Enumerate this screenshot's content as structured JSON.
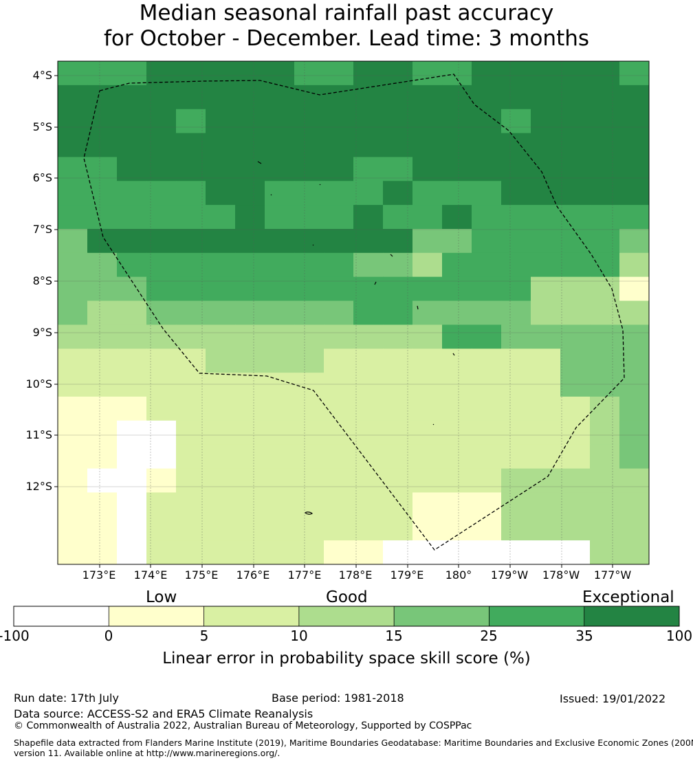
{
  "title": {
    "line1": "Median seasonal rainfall past accuracy",
    "line2": "for October - December. Lead time: 3 months"
  },
  "map": {
    "lat_labels": [
      "4°S",
      "5°S",
      "6°S",
      "7°S",
      "8°S",
      "9°S",
      "10°S",
      "11°S",
      "12°S"
    ],
    "lon_labels": [
      "173°E",
      "174°E",
      "175°E",
      "176°E",
      "177°E",
      "178°E",
      "179°E",
      "180°",
      "179°W",
      "178°W",
      "177°W"
    ],
    "grid_lon_start": 172.25,
    "grid_lat_start": -3.75,
    "cell_deg": 0.833,
    "score_colors": {
      "0": "#ffffff",
      "1": "#ffffcc",
      "2": "#d9f0a3",
      "3": "#addd8e",
      "4": "#78c679",
      "5": "#41ab5d",
      "6": "#238443"
    },
    "score_class_grid": [
      "55566666556655666665",
      "66666666666666666666",
      "66665666666666656666",
      "66666666666666666666",
      "55666666665566666666",
      "55555665555655566666",
      "55555565556556555555",
      "46666666666644555554",
      "44555555554435555553",
      "44455555555555553331",
      "43344444445544443333",
      "33333333333335544444",
      "22222333322222222444",
      "22222222222222222444",
      "11122222222222222234",
      "11002222222222222234",
      "11002222222222222234",
      "10012222222222233333",
      "11022222222211133333",
      "11022222222211133333",
      "11022222211000000033"
    ],
    "eez_boundary_note": "dashed EEZ outline",
    "colorbar": {
      "categories": [
        "Low",
        "Good",
        "Exceptional"
      ],
      "ticks": [
        "-100",
        "0",
        "5",
        "10",
        "15",
        "25",
        "35",
        "100"
      ],
      "colors": [
        "#ffffff",
        "#ffffcc",
        "#d9f0a3",
        "#addd8e",
        "#78c679",
        "#41ab5d",
        "#238443"
      ],
      "label": "Linear error in probability space skill score (%)"
    }
  },
  "footer": {
    "run_date": "Run date: 17th July",
    "base_period": "Base period: 1981-2018",
    "issued": "Issued: 19/01/2022",
    "data_source": "Data source: ACCESS-S2 and ERA5 Climate Reanalysis",
    "copyright": "© Commonwealth of Australia 2022, Australian Bureau of Meteorology, Supported by COSPPac",
    "shapefile_1": "Shapefile data extracted from Flanders Marine Institute (2019), Maritime Boundaries Geodatabase: Maritime Boundaries and Exclusive Economic Zones (200NM),",
    "shapefile_2": "version 11. Available online at http://www.marineregions.org/."
  }
}
